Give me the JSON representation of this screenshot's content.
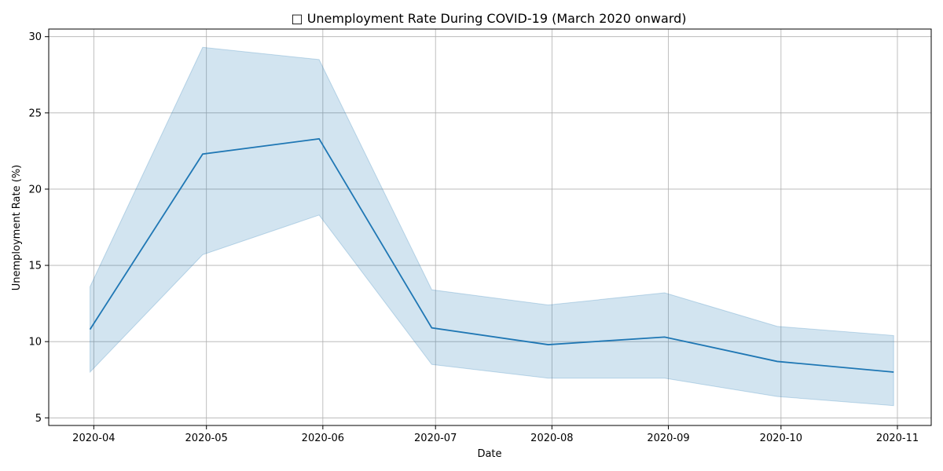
{
  "chart_data": {
    "type": "line",
    "title": "□ Unemployment Rate During COVID-19 (March 2020 onward)",
    "xlabel": "Date",
    "ylabel": "Unemployment Rate (%)",
    "x": [
      "2020-03-31",
      "2020-04-30",
      "2020-05-31",
      "2020-06-30",
      "2020-07-31",
      "2020-08-31",
      "2020-09-30",
      "2020-10-31"
    ],
    "series": [
      {
        "values": [
          10.8,
          22.3,
          23.3,
          10.9,
          9.8,
          10.3,
          8.7,
          8.0
        ],
        "lower": [
          8.0,
          15.7,
          18.3,
          8.5,
          7.6,
          7.6,
          6.4,
          5.8
        ],
        "upper": [
          13.6,
          29.3,
          28.5,
          13.4,
          12.4,
          13.2,
          11.0,
          10.4
        ],
        "color": "#1f77b4",
        "band_color": "#1f77b4"
      }
    ],
    "xlim": [
      "2020-03-20",
      "2020-11-10"
    ],
    "ylim": [
      4.5,
      30.5
    ],
    "x_ticks": [
      "2020-04",
      "2020-05",
      "2020-06",
      "2020-07",
      "2020-08",
      "2020-09",
      "2020-10",
      "2020-11"
    ],
    "y_ticks": [
      5,
      10,
      15,
      20,
      25,
      30
    ],
    "grid": true
  }
}
